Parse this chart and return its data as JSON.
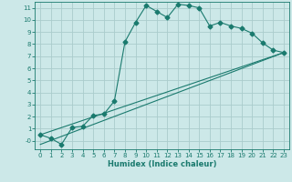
{
  "xlabel": "Humidex (Indice chaleur)",
  "bg_color": "#cce8e8",
  "grid_color": "#aacccc",
  "line_color": "#1a7a6e",
  "xlim": [
    -0.5,
    23.5
  ],
  "ylim": [
    -0.7,
    11.5
  ],
  "xticks": [
    0,
    1,
    2,
    3,
    4,
    5,
    6,
    7,
    8,
    9,
    10,
    11,
    12,
    13,
    14,
    15,
    16,
    17,
    18,
    19,
    20,
    21,
    22,
    23
  ],
  "yticks": [
    0,
    1,
    2,
    3,
    4,
    5,
    6,
    7,
    8,
    9,
    10,
    11
  ],
  "series1_x": [
    0,
    1,
    2,
    3,
    4,
    5,
    6,
    7,
    8,
    9,
    10,
    11,
    12,
    13,
    14,
    15,
    16,
    17,
    18,
    19,
    20,
    21,
    22,
    23
  ],
  "series1_y": [
    0.5,
    0.2,
    -0.3,
    1.1,
    1.2,
    2.1,
    2.2,
    3.3,
    8.2,
    9.8,
    11.2,
    10.7,
    10.2,
    11.3,
    11.2,
    11.0,
    9.5,
    9.8,
    9.5,
    9.3,
    8.9,
    8.1,
    7.5,
    7.3
  ],
  "series2_x": [
    0,
    23
  ],
  "series2_y": [
    0.5,
    7.3
  ],
  "series3_x": [
    0,
    23
  ],
  "series3_y": [
    -0.3,
    7.3
  ],
  "marker_size": 2.5,
  "linewidth": 0.8,
  "tick_fontsize": 5.0,
  "xlabel_fontsize": 6.0
}
